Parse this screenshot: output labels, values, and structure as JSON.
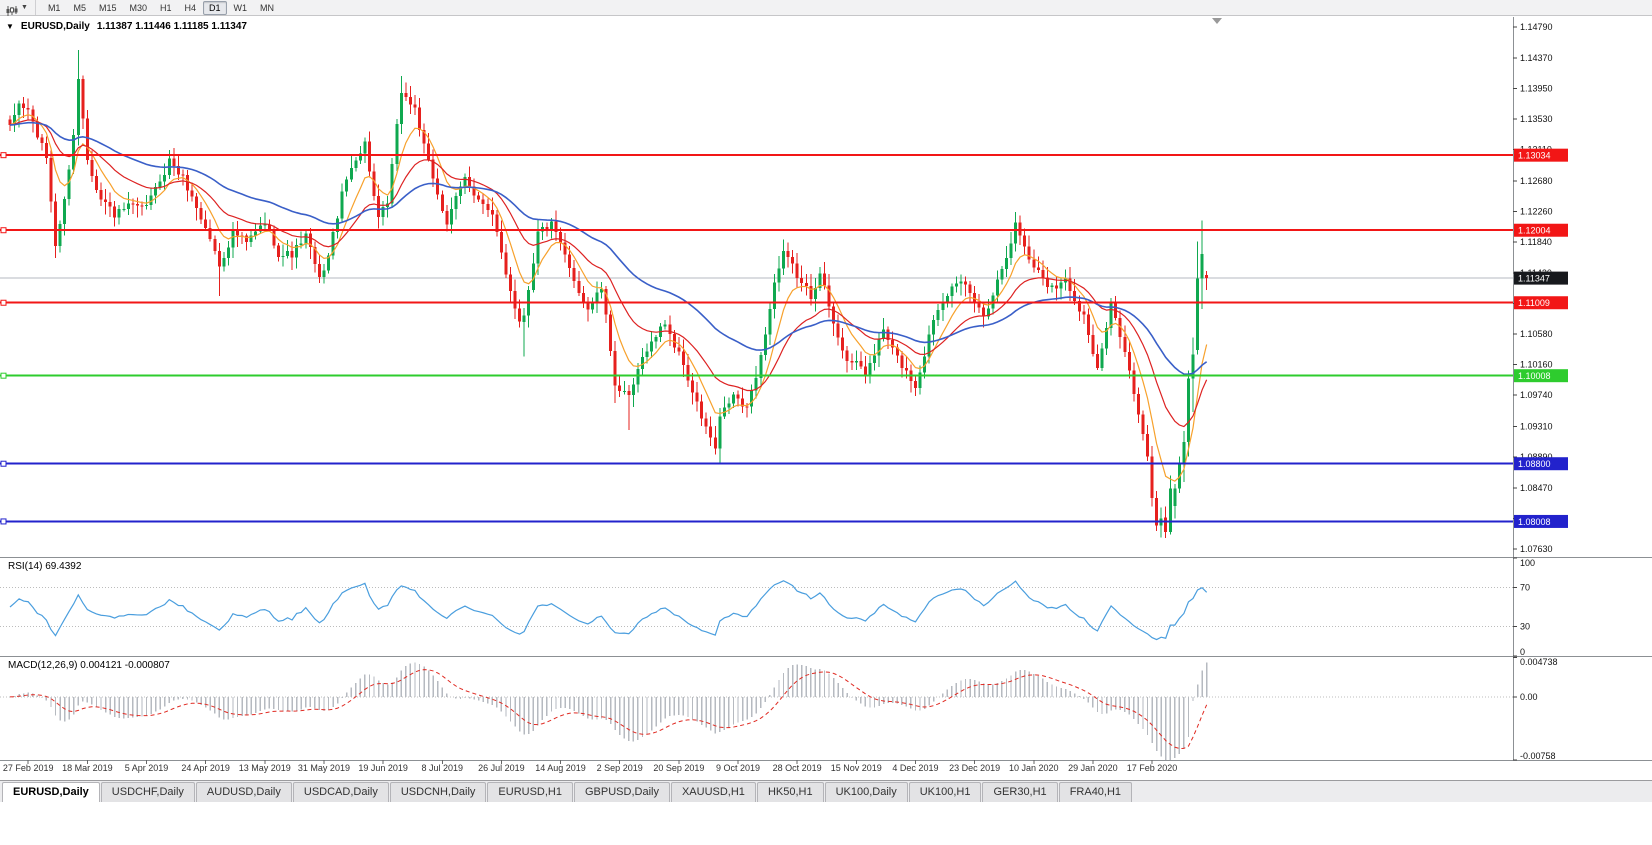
{
  "toolbar": {
    "timeframes": [
      "M1",
      "M5",
      "M15",
      "M30",
      "H1",
      "H4",
      "D1",
      "W1",
      "MN"
    ],
    "active_timeframe": "D1"
  },
  "chart": {
    "symbol_title": "EURUSD,Daily",
    "ohlc_text": "1.11387 1.11446 1.11185 1.11347",
    "open": "1.11387",
    "high": "1.11446",
    "low": "1.11185",
    "close": "1.11347"
  },
  "indicators": {
    "rsi_label": "RSI(14) 69.4392",
    "macd_label": "MACD(12,26,9) 0.004121 -0.000807"
  },
  "chart_data": {
    "type": "candlestick",
    "symbol": "EURUSD",
    "timeframe": "Daily",
    "y_axis_ticks": [
      "1.14790",
      "1.14370",
      "1.13950",
      "1.13530",
      "1.13110",
      "1.12680",
      "1.12260",
      "1.11840",
      "1.11420",
      "1.11000",
      "1.10580",
      "1.10160",
      "1.09740",
      "1.09310",
      "1.08890",
      "1.08470",
      "1.08050",
      "1.07630"
    ],
    "y_range": [
      1.0752,
      1.1493
    ],
    "x_labels": [
      "27 Feb 2019",
      "18 Mar 2019",
      "5 Apr 2019",
      "24 Apr 2019",
      "13 May 2019",
      "31 May 2019",
      "19 Jun 2019",
      "8 Jul 2019",
      "26 Jul 2019",
      "14 Aug 2019",
      "2 Sep 2019",
      "20 Sep 2019",
      "9 Oct 2019",
      "28 Oct 2019",
      "15 Nov 2019",
      "4 Dec 2019",
      "23 Dec 2019",
      "10 Jan 2020",
      "29 Jan 2020",
      "17 Feb 2020"
    ],
    "x_label_first_index": 4,
    "x_label_step": 13,
    "candle_count": 264,
    "close_anchors": [
      [
        0,
        1.1338
      ],
      [
        2,
        1.1372
      ],
      [
        4,
        1.1365
      ],
      [
        6,
        1.133
      ],
      [
        8,
        1.1298
      ],
      [
        10,
        1.1182
      ],
      [
        12,
        1.124
      ],
      [
        14,
        1.1335
      ],
      [
        15,
        1.1408
      ],
      [
        17,
        1.1302
      ],
      [
        20,
        1.1248
      ],
      [
        23,
        1.1222
      ],
      [
        26,
        1.123
      ],
      [
        29,
        1.1222
      ],
      [
        32,
        1.1252
      ],
      [
        35,
        1.1298
      ],
      [
        38,
        1.1272
      ],
      [
        41,
        1.1232
      ],
      [
        44,
        1.119
      ],
      [
        46,
        1.1152
      ],
      [
        49,
        1.1202
      ],
      [
        52,
        1.118
      ],
      [
        56,
        1.1208
      ],
      [
        59,
        1.1172
      ],
      [
        62,
        1.1168
      ],
      [
        65,
        1.1192
      ],
      [
        68,
        1.1128
      ],
      [
        70,
        1.1165
      ],
      [
        73,
        1.1248
      ],
      [
        76,
        1.1302
      ],
      [
        78,
        1.1322
      ],
      [
        81,
        1.1212
      ],
      [
        83,
        1.1232
      ],
      [
        86,
        1.1388
      ],
      [
        89,
        1.1368
      ],
      [
        92,
        1.1288
      ],
      [
        96,
        1.1212
      ],
      [
        100,
        1.1268
      ],
      [
        103,
        1.1248
      ],
      [
        106,
        1.1215
      ],
      [
        109,
        1.1142
      ],
      [
        112,
        1.1078
      ],
      [
        113,
        1.1088
      ],
      [
        116,
        1.12
      ],
      [
        119,
        1.1208
      ],
      [
        123,
        1.1142
      ],
      [
        127,
        1.1096
      ],
      [
        130,
        1.112
      ],
      [
        133,
        1.0992
      ],
      [
        136,
        1.0966
      ],
      [
        140,
        1.1038
      ],
      [
        144,
        1.1074
      ],
      [
        148,
        1.1016
      ],
      [
        152,
        1.0942
      ],
      [
        155,
        1.0898
      ],
      [
        156,
        1.0938
      ],
      [
        159,
        1.0972
      ],
      [
        162,
        1.0952
      ],
      [
        165,
        1.1028
      ],
      [
        168,
        1.113
      ],
      [
        170,
        1.1165
      ],
      [
        173,
        1.1135
      ],
      [
        176,
        1.1108
      ],
      [
        178,
        1.1152
      ],
      [
        181,
        1.1068
      ],
      [
        184,
        1.1028
      ],
      [
        188,
        1.1002
      ],
      [
        192,
        1.1062
      ],
      [
        195,
        1.1022
      ],
      [
        199,
        1.0988
      ],
      [
        203,
        1.1082
      ],
      [
        207,
        1.1135
      ],
      [
        210,
        1.1118
      ],
      [
        214,
        1.1082
      ],
      [
        218,
        1.1152
      ],
      [
        221,
        1.1212
      ],
      [
        224,
        1.1162
      ],
      [
        228,
        1.1128
      ],
      [
        232,
        1.1132
      ],
      [
        236,
        1.1088
      ],
      [
        239,
        1.1008
      ],
      [
        242,
        1.1092
      ],
      [
        245,
        1.1042
      ],
      [
        248,
        1.0945
      ],
      [
        250,
        1.0885
      ],
      [
        251,
        1.0834
      ],
      [
        252,
        1.0792
      ],
      [
        253,
        1.0806
      ]
    ],
    "final_candles_start": 254,
    "final_candles": [
      [
        1.0806,
        1.0821,
        1.0778,
        1.0786
      ],
      [
        1.0786,
        1.0864,
        1.0783,
        1.0846
      ],
      [
        1.0822,
        1.0852,
        1.0805,
        1.0846
      ],
      [
        1.0846,
        1.089,
        1.084,
        1.0881
      ],
      [
        1.0881,
        1.0925,
        1.0855,
        1.091
      ],
      [
        1.091,
        1.1008,
        1.089,
        1.0997
      ],
      [
        1.0997,
        1.1053,
        1.0951,
        1.103
      ],
      [
        1.1036,
        1.1185,
        1.103,
        1.1134
      ],
      [
        1.1134,
        1.1214,
        1.1092,
        1.1168
      ],
      [
        1.11387,
        1.11446,
        1.11185,
        1.11347
      ]
    ],
    "special_wicks": {
      "10": [
        null,
        1.1177
      ],
      "15": [
        1.1448,
        null
      ],
      "46": [
        null,
        1.111
      ],
      "86": [
        1.1412,
        null
      ],
      "113": [
        null,
        1.1027
      ],
      "133": [
        null,
        1.0963
      ],
      "136": [
        null,
        1.0926
      ],
      "156": [
        null,
        1.0879
      ]
    },
    "bid_price": 1.11347,
    "bid_box": {
      "label": "1.11347",
      "color": "#17191d"
    },
    "horizontal_lines": [
      {
        "price": 1.13034,
        "label": "1.13034",
        "color": "#f21616",
        "width": 2
      },
      {
        "price": 1.12004,
        "label": "1.12004",
        "color": "#f21616",
        "width": 2
      },
      {
        "price": 1.11009,
        "label": "1.11009",
        "color": "#f21616",
        "width": 2
      },
      {
        "price": 1.10008,
        "label": "1.10008",
        "color": "#2ecc2e",
        "width": 2
      },
      {
        "price": 1.088,
        "label": "1.08800",
        "color": "#2222cc",
        "width": 2
      },
      {
        "price": 1.08008,
        "label": "1.08008",
        "color": "#2222cc",
        "width": 2
      }
    ],
    "candle_colors": {
      "bull": "#0fa84f",
      "bear": "#e6201e"
    },
    "moving_averages": [
      {
        "name": "ma-fast-orange",
        "period": 8,
        "color": "#f7a12c",
        "width": 1.2
      },
      {
        "name": "ma-mid-red",
        "period": 21,
        "color": "#dd2222",
        "width": 1.2
      },
      {
        "name": "ma-slow-blue",
        "period": 50,
        "color": "#3a5fc8",
        "width": 1.6
      }
    ],
    "rsi": {
      "period": 14,
      "value_text": "69.4392",
      "axis_labels": [
        "100",
        "70",
        "30",
        "0"
      ],
      "level_lines": [
        70,
        30
      ],
      "range": [
        0,
        100
      ],
      "color": "#4a9ede"
    },
    "macd": {
      "fast": 12,
      "slow": 26,
      "signal": 9,
      "value_main": "0.004121",
      "value_signal": "-0.000807",
      "axis_labels": [
        "0.004738",
        "0.00",
        "-0.00758"
      ],
      "range": [
        -0.0076,
        0.0048
      ],
      "histogram_color": "#b6bac0",
      "signal_color": "#e02a22",
      "main_overrides": {
        "260": -0.0005,
        "261": 0.0015,
        "262": 0.0032,
        "263": 0.004121
      }
    }
  },
  "tabs": {
    "items": [
      {
        "label": "EURUSD,Daily",
        "active": true
      },
      {
        "label": "USDCHF,Daily",
        "active": false
      },
      {
        "label": "AUDUSD,Daily",
        "active": false
      },
      {
        "label": "USDCAD,Daily",
        "active": false
      },
      {
        "label": "USDCNH,Daily",
        "active": false
      },
      {
        "label": "EURUSD,H1",
        "active": false
      },
      {
        "label": "GBPUSD,Daily",
        "active": false
      },
      {
        "label": "XAUUSD,H1",
        "active": false
      },
      {
        "label": "HK50,H1",
        "active": false
      },
      {
        "label": "UK100,Daily",
        "active": false
      },
      {
        "label": "UK100,H1",
        "active": false
      },
      {
        "label": "GER30,H1",
        "active": false
      },
      {
        "label": "FRA40,H1",
        "active": false
      }
    ]
  }
}
